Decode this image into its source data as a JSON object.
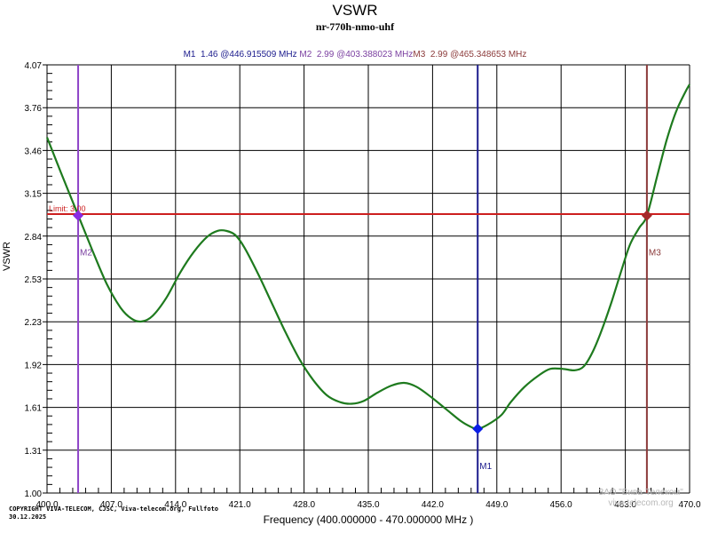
{
  "header": {
    "title": "VSWR",
    "subtitle": "nr-770h-nmo-uhf"
  },
  "markers": [
    {
      "label": "M1",
      "readout": "M1  1.46 @446.915509 MHz",
      "value": 1.46,
      "freq_mhz": 446.915509,
      "color": "#1a1a8c",
      "line_color": "#1a1a8c",
      "diamond_color": "#0a1ee6"
    },
    {
      "label": "M2",
      "readout": "M2  2.99 @403.388023 MHz",
      "value": 2.99,
      "freq_mhz": 403.388023,
      "color": "#7a3fa0",
      "line_color": "#8e44c8",
      "diamond_color": "#8a2be2"
    },
    {
      "label": "M3",
      "readout": "M3  2.99 @465.348653 MHz",
      "value": 2.99,
      "freq_mhz": 465.348653,
      "color": "#8b3a3a",
      "line_color": "#8b3a3a",
      "diamond_color": "#a52a2a"
    }
  ],
  "limit": {
    "label": "Limit: 3.00",
    "value": 3.0,
    "color": "#cc1f1f"
  },
  "footer": {
    "copyright_line1": "COPYRIGHT VIVA-TELECOM, CJSC, Viva-telecom.org, Fullfoto",
    "copyright_line2": "30.12.2025",
    "watermark_line1": "ЗАО \"Вива-Телеком\"",
    "watermark_line2": "viva-telecom.org"
  },
  "chart_data": {
    "type": "line",
    "title": "VSWR",
    "subtitle": "nr-770h-nmo-uhf",
    "xlabel": "Frequency (400.000000 - 470.000000 MHz )",
    "ylabel": "VSWR",
    "xlim": [
      400.0,
      470.0
    ],
    "ylim": [
      1.0,
      4.07
    ],
    "x_ticks": [
      "400.0",
      "407.0",
      "414.0",
      "421.0",
      "428.0",
      "435.0",
      "442.0",
      "449.0",
      "456.0",
      "463.0",
      "470.0"
    ],
    "y_ticks": [
      "4.07",
      "3.76",
      "3.46",
      "3.15",
      "2.84",
      "2.53",
      "2.23",
      "1.92",
      "1.61",
      "1.31",
      "1.00"
    ],
    "grid": true,
    "series": [
      {
        "name": "VSWR",
        "color": "#1e7a1e",
        "x": [
          400.0,
          401.5,
          403.4,
          405.0,
          406.5,
          408.0,
          409.2,
          410.3,
          411.5,
          413.0,
          414.5,
          416.0,
          417.5,
          418.6,
          419.5,
          420.5,
          421.5,
          423.0,
          424.5,
          426.0,
          427.5,
          429.0,
          430.5,
          432.0,
          433.2,
          434.5,
          436.0,
          437.5,
          438.9,
          440.3,
          442.0,
          443.5,
          445.0,
          446.0,
          446.9,
          448.0,
          449.5,
          450.5,
          452.0,
          453.5,
          454.8,
          456.2,
          457.5,
          458.5,
          459.5,
          460.5,
          461.5,
          462.5,
          463.5,
          464.5,
          465.35,
          466.5,
          467.5,
          468.5,
          469.5,
          470.0
        ],
        "values": [
          3.55,
          3.3,
          2.99,
          2.73,
          2.5,
          2.33,
          2.25,
          2.23,
          2.27,
          2.4,
          2.58,
          2.73,
          2.84,
          2.88,
          2.88,
          2.85,
          2.76,
          2.57,
          2.36,
          2.15,
          1.96,
          1.81,
          1.7,
          1.65,
          1.64,
          1.66,
          1.72,
          1.77,
          1.79,
          1.76,
          1.68,
          1.6,
          1.52,
          1.48,
          1.46,
          1.49,
          1.56,
          1.65,
          1.76,
          1.84,
          1.89,
          1.89,
          1.88,
          1.91,
          2.02,
          2.18,
          2.37,
          2.58,
          2.78,
          2.9,
          2.99,
          3.28,
          3.53,
          3.73,
          3.87,
          3.93
        ]
      }
    ],
    "limit_line": {
      "label": "Limit: 3.00",
      "value": 3.0
    },
    "markers": [
      {
        "name": "M1",
        "x": 446.915509,
        "y": 1.46
      },
      {
        "name": "M2",
        "x": 403.388023,
        "y": 2.99
      },
      {
        "name": "M3",
        "x": 465.348653,
        "y": 2.99
      }
    ]
  }
}
